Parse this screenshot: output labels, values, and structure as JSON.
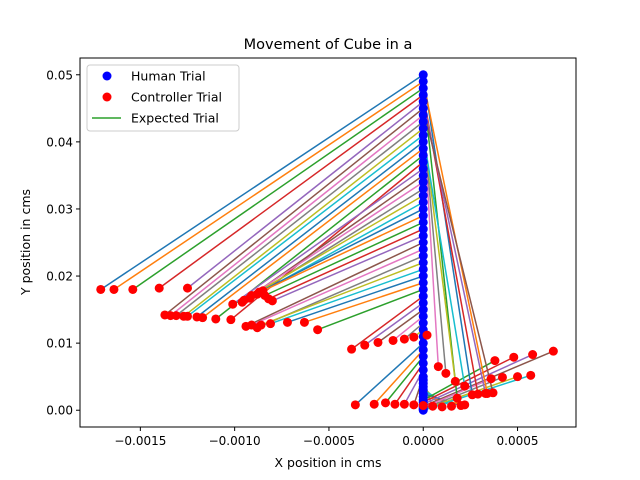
{
  "chart_data": {
    "type": "scatter",
    "title": "Movement of Cube in a",
    "xlabel": "X position in cms",
    "ylabel": "Y position in cms",
    "xlim": [
      -0.00182,
      0.00081
    ],
    "ylim": [
      -0.0025,
      0.0525
    ],
    "x_ticks": [
      -0.0015,
      -0.001,
      -0.0005,
      0.0,
      0.0005
    ],
    "x_tick_labels": [
      "−0.0015",
      "−0.0010",
      "−0.0005",
      "0.0000",
      "0.0005"
    ],
    "y_ticks": [
      0.0,
      0.01,
      0.02,
      0.03,
      0.04,
      0.05
    ],
    "y_tick_labels": [
      "0.00",
      "0.01",
      "0.02",
      "0.03",
      "0.04",
      "0.05"
    ],
    "grid": false,
    "legend_position": "upper-left",
    "legend": [
      {
        "label": "Human Trial",
        "kind": "marker",
        "color": "#0000ff"
      },
      {
        "label": "Controller Trial",
        "kind": "marker",
        "color": "#ff0000"
      },
      {
        "label": "Expected Trial",
        "kind": "line",
        "color": "#2ca02c"
      }
    ],
    "line_colors": [
      "#1f77b4",
      "#ff7f0e",
      "#2ca02c",
      "#d62728",
      "#9467bd",
      "#8c564b",
      "#e377c2",
      "#7f7f7f",
      "#bcbd22",
      "#17becf"
    ],
    "series": [
      {
        "name": "Human Trial",
        "color": "#0000ff",
        "x": [
          0,
          0,
          0,
          0,
          0,
          0,
          0,
          0,
          0,
          0,
          0,
          0,
          0,
          0,
          0,
          0,
          0,
          0,
          0,
          0,
          0,
          0,
          0,
          0,
          0,
          0,
          0,
          0,
          0,
          0,
          0,
          0,
          0,
          0,
          0,
          0,
          0,
          0,
          0,
          0,
          0,
          0,
          0,
          0,
          0,
          0,
          0,
          0,
          0,
          0,
          0,
          0,
          0,
          0,
          0,
          0,
          0,
          0,
          0,
          0
        ],
        "y": [
          0.05,
          0.049,
          0.048,
          0.047,
          0.046,
          0.045,
          0.044,
          0.043,
          0.042,
          0.041,
          0.04,
          0.039,
          0.038,
          0.037,
          0.036,
          0.035,
          0.034,
          0.033,
          0.032,
          0.031,
          0.03,
          0.029,
          0.028,
          0.027,
          0.026,
          0.025,
          0.024,
          0.023,
          0.022,
          0.021,
          0.02,
          0.019,
          0.018,
          0.017,
          0.016,
          0.015,
          0.014,
          0.013,
          0.012,
          0.011,
          0.01,
          0.009,
          0.008,
          0.007,
          0.006,
          0.005,
          0.0045,
          0.004,
          0.0035,
          0.003,
          0.0025,
          0.002,
          0.0015,
          0.0012,
          0.0009,
          0.0006,
          0.0004,
          0.0002,
          0.0001,
          0.0
        ]
      },
      {
        "name": "Controller Trial",
        "color": "#ff0000",
        "x": [
          -0.00171,
          -0.00164,
          -0.00154,
          -0.0014,
          -0.00125,
          -0.00137,
          -0.00134,
          -0.00131,
          -0.00127,
          -0.00125,
          -0.0012,
          -0.00117,
          -0.0011,
          -0.00102,
          -0.00101,
          -0.00096,
          -0.00095,
          -0.00092,
          -0.00091,
          -0.00088,
          -0.00087,
          -0.00085,
          -0.00084,
          -0.00082,
          -0.0008,
          -0.00094,
          -0.00091,
          -0.00088,
          -0.00086,
          -0.00081,
          -0.00072,
          -0.00063,
          -0.00056,
          -0.00038,
          -0.00031,
          -0.00024,
          -0.00016,
          -0.0001,
          -5e-05,
          2e-05,
          -0.00036,
          -0.00026,
          -0.0002,
          -0.00015,
          -0.0001,
          -5e-05,
          0.0,
          5e-05,
          0.0001,
          0.00015,
          0.0002,
          0.00022,
          0.00038,
          0.00048,
          0.00058,
          0.00069,
          0.00036,
          0.00042,
          0.0005,
          0.00057,
          0.00026,
          0.00034,
          0.00018,
          0.00029,
          0.00033,
          0.00037,
          8e-05,
          0.00012,
          0.00017,
          0.00022
        ],
        "y": [
          0.018,
          0.018,
          0.018,
          0.0182,
          0.0182,
          0.0142,
          0.0141,
          0.0141,
          0.014,
          0.014,
          0.0139,
          0.0138,
          0.0136,
          0.0135,
          0.0158,
          0.0161,
          0.0164,
          0.0167,
          0.0171,
          0.0173,
          0.0176,
          0.0178,
          0.0171,
          0.0166,
          0.0163,
          0.0125,
          0.0127,
          0.0123,
          0.0127,
          0.0129,
          0.0131,
          0.0131,
          0.012,
          0.0091,
          0.0097,
          0.0101,
          0.0104,
          0.0106,
          0.0109,
          0.0112,
          0.0008,
          0.0009,
          0.0011,
          0.0009,
          0.0009,
          0.0008,
          0.0007,
          0.0006,
          0.0005,
          0.0006,
          0.0007,
          0.0008,
          0.0074,
          0.0079,
          0.0083,
          0.0088,
          0.0047,
          0.0049,
          0.005,
          0.0052,
          0.0023,
          0.0025,
          0.0018,
          0.0024,
          0.0025,
          0.0026,
          0.0065,
          0.0055,
          0.0043,
          0.0036
        ]
      }
    ]
  }
}
